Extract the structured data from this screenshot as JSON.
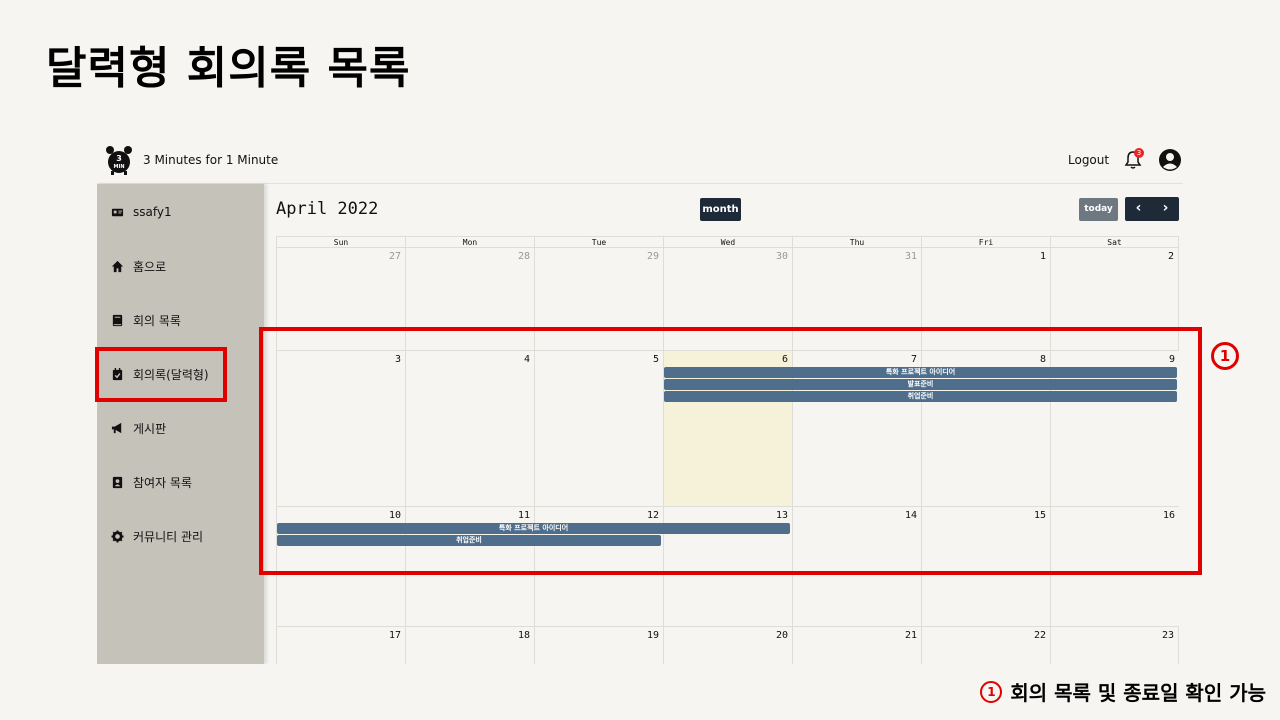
{
  "slide": {
    "title": "달력형 회의록 목록",
    "marker": "1",
    "caption": "회의 목록 및 종료일 확인 가능"
  },
  "header": {
    "logo_text": "3 MIN",
    "app_name": "3 Minutes for 1 Minute",
    "logout_label": "Logout",
    "notification_count": "3"
  },
  "sidebar": {
    "items": [
      {
        "label": "ssafy1",
        "icon": "id-card-icon"
      },
      {
        "label": "홈으로",
        "icon": "home-icon"
      },
      {
        "label": "회의 목록",
        "icon": "book-icon"
      },
      {
        "label": "회의록(달력형)",
        "icon": "calendar-check-icon"
      },
      {
        "label": "게시판",
        "icon": "megaphone-icon"
      },
      {
        "label": "참여자 목록",
        "icon": "contact-book-icon"
      },
      {
        "label": "커뮤니티 관리",
        "icon": "gear-icon"
      }
    ]
  },
  "calendar": {
    "title": "April 2022",
    "view_label": "month",
    "today_label": "today",
    "prev_label": "‹",
    "next_label": "›",
    "weekdays": [
      "Sun",
      "Mon",
      "Tue",
      "Wed",
      "Thu",
      "Fri",
      "Sat"
    ],
    "weeks": [
      [
        "27",
        "28",
        "29",
        "30",
        "31",
        "1",
        "2"
      ],
      [
        "3",
        "4",
        "5",
        "6",
        "7",
        "8",
        "9"
      ],
      [
        "10",
        "11",
        "12",
        "13",
        "14",
        "15",
        "16"
      ],
      [
        "17",
        "18",
        "19",
        "20",
        "21",
        "22",
        "23"
      ]
    ],
    "events": {
      "w2_e1": "특화 프로젝트 아이디어",
      "w2_e2": "발표준비",
      "w2_e3": "취업준비",
      "w3_e1": "특화 프로젝트 아이디어",
      "w3_e2": "취업준비"
    }
  },
  "colors": {
    "highlight": "#e00000",
    "sidebar_bg": "#c4c2b9",
    "event_bg": "#4f6e8c",
    "today_bg": "#f6f1d9",
    "button_dark": "#1e2a38"
  }
}
